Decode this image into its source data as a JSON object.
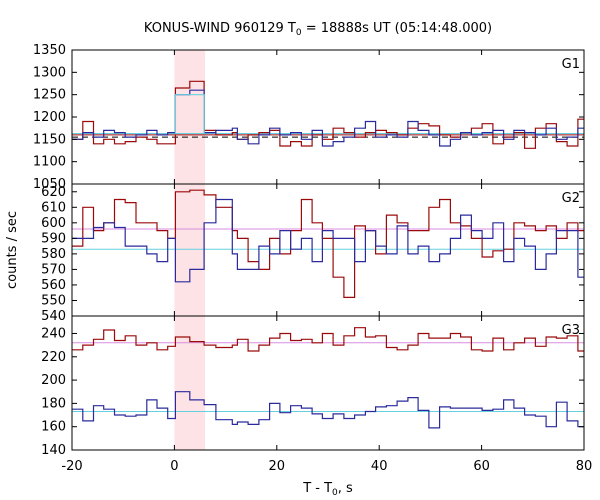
{
  "chart_data": {
    "type": "line",
    "title_main": "KONUS-WIND 960129 T",
    "title_sub": "0",
    "title_rest": " = 18888s UT (05:14:48.000)",
    "xlabel_main": "T - T",
    "xlabel_sub": "0",
    "xlabel_rest": ", s",
    "ylabel": "counts / sec",
    "xlim": [
      -20,
      80
    ],
    "xticks": [
      -20,
      0,
      20,
      40,
      60,
      80
    ],
    "highlight": [
      0,
      6
    ],
    "colors": {
      "red": "#9b0a0a",
      "blue": "#2a2a9c",
      "cyan": "#66d0e0",
      "violet": "#d88ee0",
      "highlight": "#fde3e6",
      "dash": "#000000"
    },
    "panels": [
      {
        "name": "G1",
        "ylim": [
          1050,
          1350
        ],
        "yticks": [
          1050,
          1100,
          1150,
          1200,
          1250,
          1300,
          1350
        ],
        "edges": [
          -20,
          -17.9,
          -15.8,
          -13.8,
          -11.7,
          -9.6,
          -7.5,
          -5.4,
          -3.4,
          -1.3,
          0.2,
          3.0,
          5.8,
          8.1,
          11.3,
          12.3,
          14.4,
          16.5,
          18.6,
          20.6,
          22.7,
          24.8,
          26.9,
          28.9,
          31.0,
          33.1,
          35.2,
          37.3,
          39.3,
          41.4,
          43.5,
          45.6,
          47.6,
          49.7,
          51.8,
          53.9,
          55.9,
          58.0,
          60.1,
          62.2,
          64.3,
          66.3,
          68.4,
          70.5,
          72.6,
          74.6,
          76.7,
          78.8,
          80
        ],
        "series": [
          {
            "color": "red",
            "values": [
              1150,
              1190,
              1140,
              1150,
              1140,
              1145,
              1155,
              1150,
              1140,
              1140,
              1265,
              1280,
              1170,
              1160,
              1165,
              1150,
              1160,
              1165,
              1170,
              1135,
              1145,
              1135,
              1160,
              1150,
              1175,
              1165,
              1155,
              1165,
              1170,
              1165,
              1160,
              1175,
              1185,
              1180,
              1160,
              1155,
              1165,
              1175,
              1185,
              1140,
              1155,
              1165,
              1130,
              1175,
              1185,
              1145,
              1135,
              1195
            ]
          },
          {
            "color": "blue",
            "values": [
              1150,
              1165,
              1155,
              1170,
              1165,
              1155,
              1160,
              1170,
              1160,
              1165,
              1250,
              1260,
              1165,
              1170,
              1175,
              1150,
              1140,
              1160,
              1175,
              1160,
              1165,
              1150,
              1170,
              1135,
              1145,
              1155,
              1175,
              1190,
              1155,
              1160,
              1155,
              1190,
              1170,
              1160,
              1135,
              1150,
              1165,
              1160,
              1165,
              1170,
              1150,
              1170,
              1165,
              1160,
              1175,
              1150,
              1155,
              1175
            ]
          }
        ],
        "hlines": [
          {
            "color": "cyan",
            "value": 1163,
            "dash": false
          },
          {
            "color": "red",
            "value": 1160,
            "dash": false
          },
          {
            "color": "dash",
            "value": 1155,
            "dash": true
          }
        ],
        "extra_steps": [
          {
            "color": "cyan",
            "x0": 0.2,
            "x1": 5.8,
            "value": 1250
          }
        ]
      },
      {
        "name": "G2",
        "ylim": [
          540,
          625
        ],
        "yticks": [
          540,
          550,
          560,
          570,
          580,
          590,
          600,
          610,
          620
        ],
        "edges": [
          -20,
          -17.9,
          -15.8,
          -13.8,
          -11.7,
          -9.6,
          -7.5,
          -5.4,
          -3.4,
          -1.3,
          0.2,
          3.0,
          5.8,
          8.1,
          11.3,
          12.3,
          14.4,
          16.5,
          18.6,
          20.6,
          22.7,
          24.8,
          26.9,
          28.9,
          31.0,
          33.1,
          35.2,
          37.3,
          39.3,
          41.4,
          43.5,
          45.6,
          47.6,
          49.7,
          51.8,
          53.9,
          55.9,
          58.0,
          60.1,
          62.2,
          64.3,
          66.3,
          68.4,
          70.5,
          72.6,
          74.6,
          76.7,
          78.8,
          80
        ],
        "series": [
          {
            "color": "red",
            "values": [
              585,
              610,
              595,
              600,
              615,
              613,
              600,
              600,
              595,
              590,
              620,
              621,
              618,
              610,
              595,
              590,
              575,
              570,
              590,
              580,
              595,
              615,
              600,
              590,
              565,
              552,
              598,
              595,
              580,
              605,
              600,
              595,
              595,
              610,
              615,
              600,
              598,
              590,
              578,
              582,
              583,
              600,
              598,
              595,
              598,
              590,
              600,
              595
            ]
          },
          {
            "color": "blue",
            "values": [
              590,
              590,
              597,
              600,
              597,
              585,
              585,
              580,
              575,
              590,
              562,
              570,
              600,
              615,
              580,
              570,
              570,
              585,
              580,
              595,
              583,
              590,
              575,
              595,
              590,
              590,
              575,
              595,
              585,
              580,
              598,
              580,
              585,
              575,
              580,
              590,
              605,
              595,
              590,
              600,
              575,
              590,
              585,
              570,
              580,
              595,
              595,
              565
            ]
          }
        ],
        "hlines": [
          {
            "color": "violet",
            "value": 596,
            "dash": false
          },
          {
            "color": "cyan",
            "value": 583,
            "dash": false
          }
        ],
        "extra_steps": []
      },
      {
        "name": "G3",
        "ylim": [
          140,
          255
        ],
        "yticks": [
          140,
          160,
          180,
          200,
          220,
          240
        ],
        "edges": [
          -20,
          -17.9,
          -15.8,
          -13.8,
          -11.7,
          -9.6,
          -7.5,
          -5.4,
          -3.4,
          -1.3,
          0.2,
          3.0,
          5.8,
          8.1,
          11.3,
          12.3,
          14.4,
          16.5,
          18.6,
          20.6,
          22.7,
          24.8,
          26.9,
          28.9,
          31.0,
          33.1,
          35.2,
          37.3,
          39.3,
          41.4,
          43.5,
          45.6,
          47.6,
          49.7,
          51.8,
          53.9,
          55.9,
          58.0,
          60.1,
          62.2,
          64.3,
          66.3,
          68.4,
          70.5,
          72.6,
          74.6,
          76.7,
          78.8,
          80
        ],
        "series": [
          {
            "color": "red",
            "values": [
              226,
              230,
              235,
              243,
              234,
              238,
              230,
              232,
              226,
              229,
              237,
              233,
              230,
              228,
              230,
              235,
              225,
              230,
              236,
              240,
              234,
              235,
              232,
              240,
              230,
              238,
              245,
              237,
              238,
              228,
              226,
              230,
              240,
              236,
              236,
              240,
              237,
              226,
              225,
              236,
              226,
              232,
              236,
              229,
              237,
              236,
              238,
              225
            ]
          },
          {
            "color": "blue",
            "values": [
              175,
              165,
              178,
              175,
              170,
              169,
              170,
              183,
              176,
              167,
              190,
              183,
              179,
              166,
              162,
              164,
              162,
              166,
              180,
              172,
              178,
              176,
              171,
              167,
              171,
              167,
              170,
              173,
              177,
              178,
              182,
              185,
              174,
              159,
              177,
              176,
              176,
              176,
              174,
              175,
              183,
              176,
              170,
              169,
              160,
              181,
              165,
              160
            ]
          }
        ],
        "hlines": [
          {
            "color": "violet",
            "value": 232,
            "dash": false
          },
          {
            "color": "cyan",
            "value": 173,
            "dash": false
          }
        ],
        "extra_steps": []
      }
    ]
  }
}
